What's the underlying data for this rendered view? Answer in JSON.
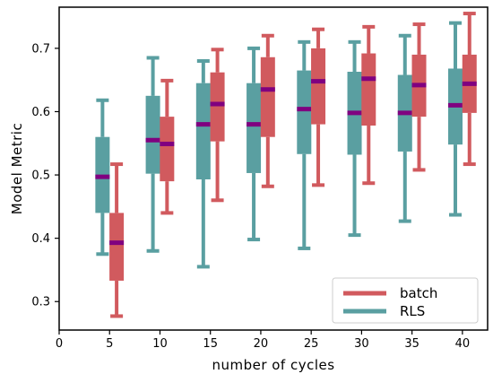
{
  "chart_data": {
    "type": "box",
    "title": "",
    "xlabel": "number of cycles",
    "ylabel": "Model Metric",
    "xlim": [
      0,
      42.5
    ],
    "ylim": [
      0.255,
      0.765
    ],
    "x_ticks": [
      0,
      5,
      10,
      15,
      20,
      25,
      30,
      35,
      40
    ],
    "y_ticks": [
      0.3,
      0.4,
      0.5,
      0.6,
      0.7
    ],
    "y_tick_labels": [
      "0.3",
      "0.4",
      "0.5",
      "0.6",
      "0.7"
    ],
    "grid": false,
    "legend_position": "bottom-right",
    "median_color": "#800080",
    "series": [
      {
        "name": "RLS",
        "color": "#5a9fa1",
        "x_offset": -0.7,
        "boxes": [
          {
            "x": 5,
            "whisker_low": 0.375,
            "q1": 0.44,
            "median": 0.497,
            "q3": 0.56,
            "whisker_high": 0.618
          },
          {
            "x": 10,
            "whisker_low": 0.38,
            "q1": 0.502,
            "median": 0.555,
            "q3": 0.625,
            "whisker_high": 0.685
          },
          {
            "x": 15,
            "whisker_low": 0.355,
            "q1": 0.493,
            "median": 0.58,
            "q3": 0.645,
            "whisker_high": 0.68
          },
          {
            "x": 20,
            "whisker_low": 0.398,
            "q1": 0.503,
            "median": 0.58,
            "q3": 0.645,
            "whisker_high": 0.7
          },
          {
            "x": 25,
            "whisker_low": 0.384,
            "q1": 0.533,
            "median": 0.604,
            "q3": 0.665,
            "whisker_high": 0.71
          },
          {
            "x": 30,
            "whisker_low": 0.405,
            "q1": 0.532,
            "median": 0.598,
            "q3": 0.663,
            "whisker_high": 0.71
          },
          {
            "x": 35,
            "whisker_low": 0.427,
            "q1": 0.537,
            "median": 0.598,
            "q3": 0.658,
            "whisker_high": 0.72
          },
          {
            "x": 40,
            "whisker_low": 0.437,
            "q1": 0.548,
            "median": 0.61,
            "q3": 0.668,
            "whisker_high": 0.74
          }
        ]
      },
      {
        "name": "batch",
        "color": "#d15a5e",
        "x_offset": 0.7,
        "boxes": [
          {
            "x": 5,
            "whisker_low": 0.277,
            "q1": 0.333,
            "median": 0.393,
            "q3": 0.44,
            "whisker_high": 0.517
          },
          {
            "x": 10,
            "whisker_low": 0.44,
            "q1": 0.49,
            "median": 0.549,
            "q3": 0.592,
            "whisker_high": 0.649
          },
          {
            "x": 15,
            "whisker_low": 0.46,
            "q1": 0.553,
            "median": 0.612,
            "q3": 0.662,
            "whisker_high": 0.698
          },
          {
            "x": 20,
            "whisker_low": 0.482,
            "q1": 0.56,
            "median": 0.635,
            "q3": 0.686,
            "whisker_high": 0.72
          },
          {
            "x": 25,
            "whisker_low": 0.484,
            "q1": 0.58,
            "median": 0.648,
            "q3": 0.7,
            "whisker_high": 0.73
          },
          {
            "x": 30,
            "whisker_low": 0.487,
            "q1": 0.578,
            "median": 0.652,
            "q3": 0.692,
            "whisker_high": 0.734
          },
          {
            "x": 35,
            "whisker_low": 0.508,
            "q1": 0.592,
            "median": 0.642,
            "q3": 0.69,
            "whisker_high": 0.738
          },
          {
            "x": 40,
            "whisker_low": 0.517,
            "q1": 0.598,
            "median": 0.644,
            "q3": 0.69,
            "whisker_high": 0.755
          }
        ]
      }
    ],
    "legend": [
      {
        "label": "batch",
        "color": "#d15a5e"
      },
      {
        "label": "RLS",
        "color": "#5a9fa1"
      }
    ]
  }
}
